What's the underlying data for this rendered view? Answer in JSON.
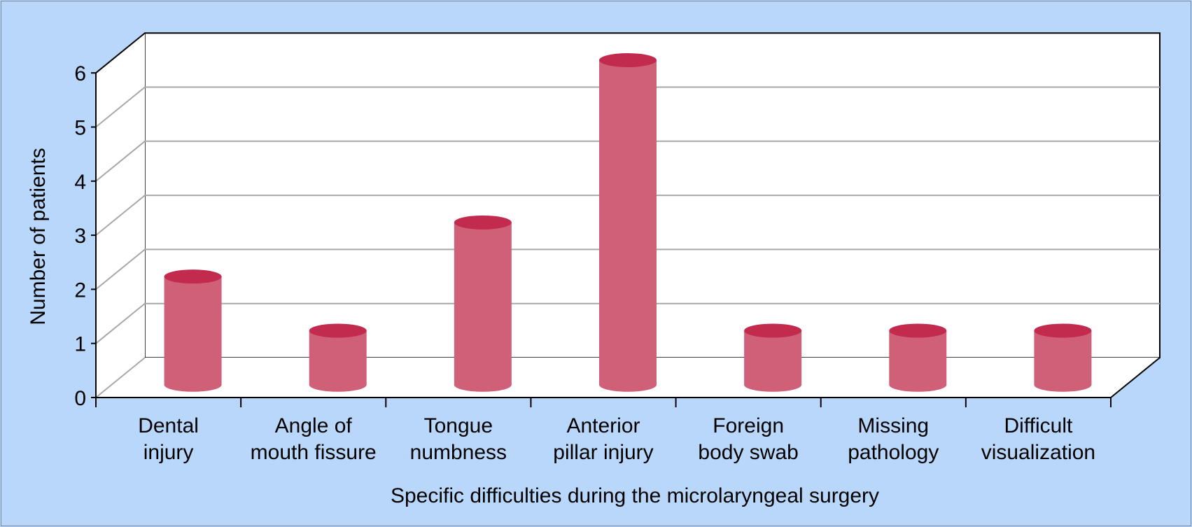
{
  "chart_data": {
    "type": "bar",
    "style": "3d-cylinder",
    "categories": [
      [
        "Dental",
        "injury"
      ],
      [
        "Angle of",
        "mouth fissure"
      ],
      [
        "Tongue",
        "numbness"
      ],
      [
        "Anterior",
        "pillar injury"
      ],
      [
        "Foreign",
        "body swab"
      ],
      [
        "Missing",
        "pathology"
      ],
      [
        "Difficult",
        "visualization"
      ]
    ],
    "values": [
      2,
      1,
      3,
      6,
      1,
      1,
      1
    ],
    "xlabel": "Specific difficulties during the microlaryngeal surgery",
    "ylabel": "Number of patients",
    "ylim": [
      0,
      6
    ],
    "yticks": [
      "0",
      "1",
      "2",
      "3",
      "4",
      "5",
      "6"
    ],
    "grid": true,
    "colors": {
      "background": "#b8d7fa",
      "plot_wall": "#ffffff",
      "bar_body": "#d06078",
      "bar_top": "#c22a4e",
      "gridline": "#a8a8a8",
      "axis": "#000000"
    }
  }
}
